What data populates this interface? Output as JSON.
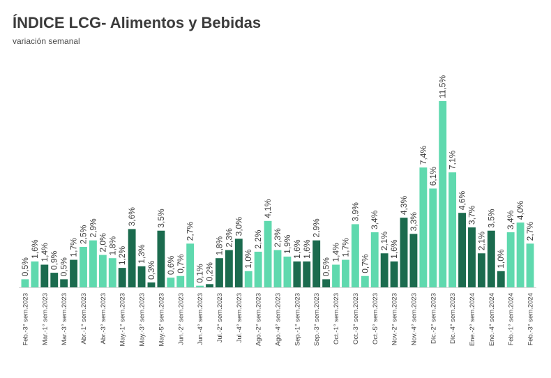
{
  "title": "ÍNDICE LCG- Alimentos y Bebidas",
  "subtitle": "variación semanal",
  "colors": {
    "light": "#5fd9ae",
    "dark": "#1b6b4e",
    "text": "#3b3b3b"
  },
  "chart_data": {
    "type": "bar",
    "title": "ÍNDICE LCG- Alimentos y Bebidas",
    "subtitle": "variación semanal",
    "xlabel": "",
    "ylabel": "",
    "ylim": [
      0,
      12
    ],
    "grid": false,
    "categories": [
      "Feb.-3° sem.2023",
      "",
      "Mar.-1° sem.2023",
      "",
      "Mar.-3° sem.2023",
      "",
      "Abr.-1° sem.2023",
      "",
      "Abr.-3° sem.2023",
      "",
      "May.-1° sem.2023",
      "",
      "May.-3° sem.2023",
      "",
      "May.-5° sem.2023",
      "",
      "Jun.-2° sem.2023",
      "",
      "Jun.-4° sem.2023",
      "",
      "Jul.-2° sem.2023",
      "",
      "Jul.-4° sem.2023",
      "",
      "Ago.-2° sem.2023",
      "",
      "Ago.-4° sem.2023",
      "",
      "Sep.-1° sem.2023",
      "",
      "Sep.-3° sem.2023",
      "",
      "Oct.-1° sem.2023",
      "",
      "Oct.-3° sem.2023",
      "",
      "Oct.-5° sem.2023",
      "",
      "Nov.-2° sem.2023",
      "",
      "Nov.-4° sem.2023",
      "",
      "Dic.-2° sem.2023",
      "",
      "Dic.-4° sem.2023",
      "",
      "Ene.-2° sem.2024",
      "",
      "Ene.-4° sem.2024",
      "",
      "Feb.-1° sem.2024",
      "",
      "Feb.-3° sem.2024"
    ],
    "values": [
      0.5,
      1.6,
      1.4,
      0.9,
      0.5,
      1.7,
      2.5,
      2.9,
      2.0,
      1.8,
      1.2,
      3.6,
      1.3,
      0.3,
      3.5,
      0.6,
      0.7,
      2.7,
      0.1,
      0.2,
      1.8,
      2.3,
      3.0,
      1.0,
      2.2,
      4.1,
      2.3,
      1.9,
      1.6,
      1.6,
      2.9,
      0.5,
      1.4,
      1.7,
      3.9,
      0.7,
      3.4,
      2.1,
      1.6,
      4.3,
      3.3,
      7.4,
      6.1,
      11.5,
      7.1,
      4.6,
      3.7,
      2.1,
      3.5,
      1.0,
      3.4,
      4.0,
      2.7
    ],
    "data_labels": [
      "0,5%",
      "1,6%",
      "1,4%",
      "0,9%",
      "0,5%",
      "1,7%",
      "2,5%",
      "2,9%",
      "2,0%",
      "1,8%",
      "1,2%",
      "3,6%",
      "1,3%",
      "0,3%",
      "3,5%",
      "0,6%",
      "0,7%",
      "2,7%",
      "0,1%",
      "0,2%",
      "1,8%",
      "2,3%",
      "3,0%",
      "1,0%",
      "2,2%",
      "4,1%",
      "2,3%",
      "1,9%",
      "1,6%",
      "1,6%",
      "2,9%",
      "0,5%",
      "1,4%",
      "1,7%",
      "3,9%",
      "0,7%",
      "3,4%",
      "2,1%",
      "1,6%",
      "4,3%",
      "3,3%",
      "7,4%",
      "6,1%",
      "11,5%",
      "7,1%",
      "4,6%",
      "3,7%",
      "2,1%",
      "3,5%",
      "1,0%",
      "3,4%",
      "4,0%",
      "2,7%"
    ],
    "bar_colors": [
      "light",
      "light",
      "dark",
      "dark",
      "dark",
      "dark",
      "light",
      "light",
      "light",
      "light",
      "dark",
      "dark",
      "dark",
      "dark",
      "dark",
      "light",
      "light",
      "light",
      "light",
      "dark",
      "dark",
      "dark",
      "dark",
      "light",
      "light",
      "light",
      "light",
      "light",
      "dark",
      "dark",
      "dark",
      "dark",
      "light",
      "light",
      "light",
      "light",
      "light",
      "dark",
      "dark",
      "dark",
      "dark",
      "light",
      "light",
      "light",
      "light",
      "dark",
      "dark",
      "dark",
      "dark",
      "dark",
      "light",
      "light",
      "light"
    ]
  }
}
